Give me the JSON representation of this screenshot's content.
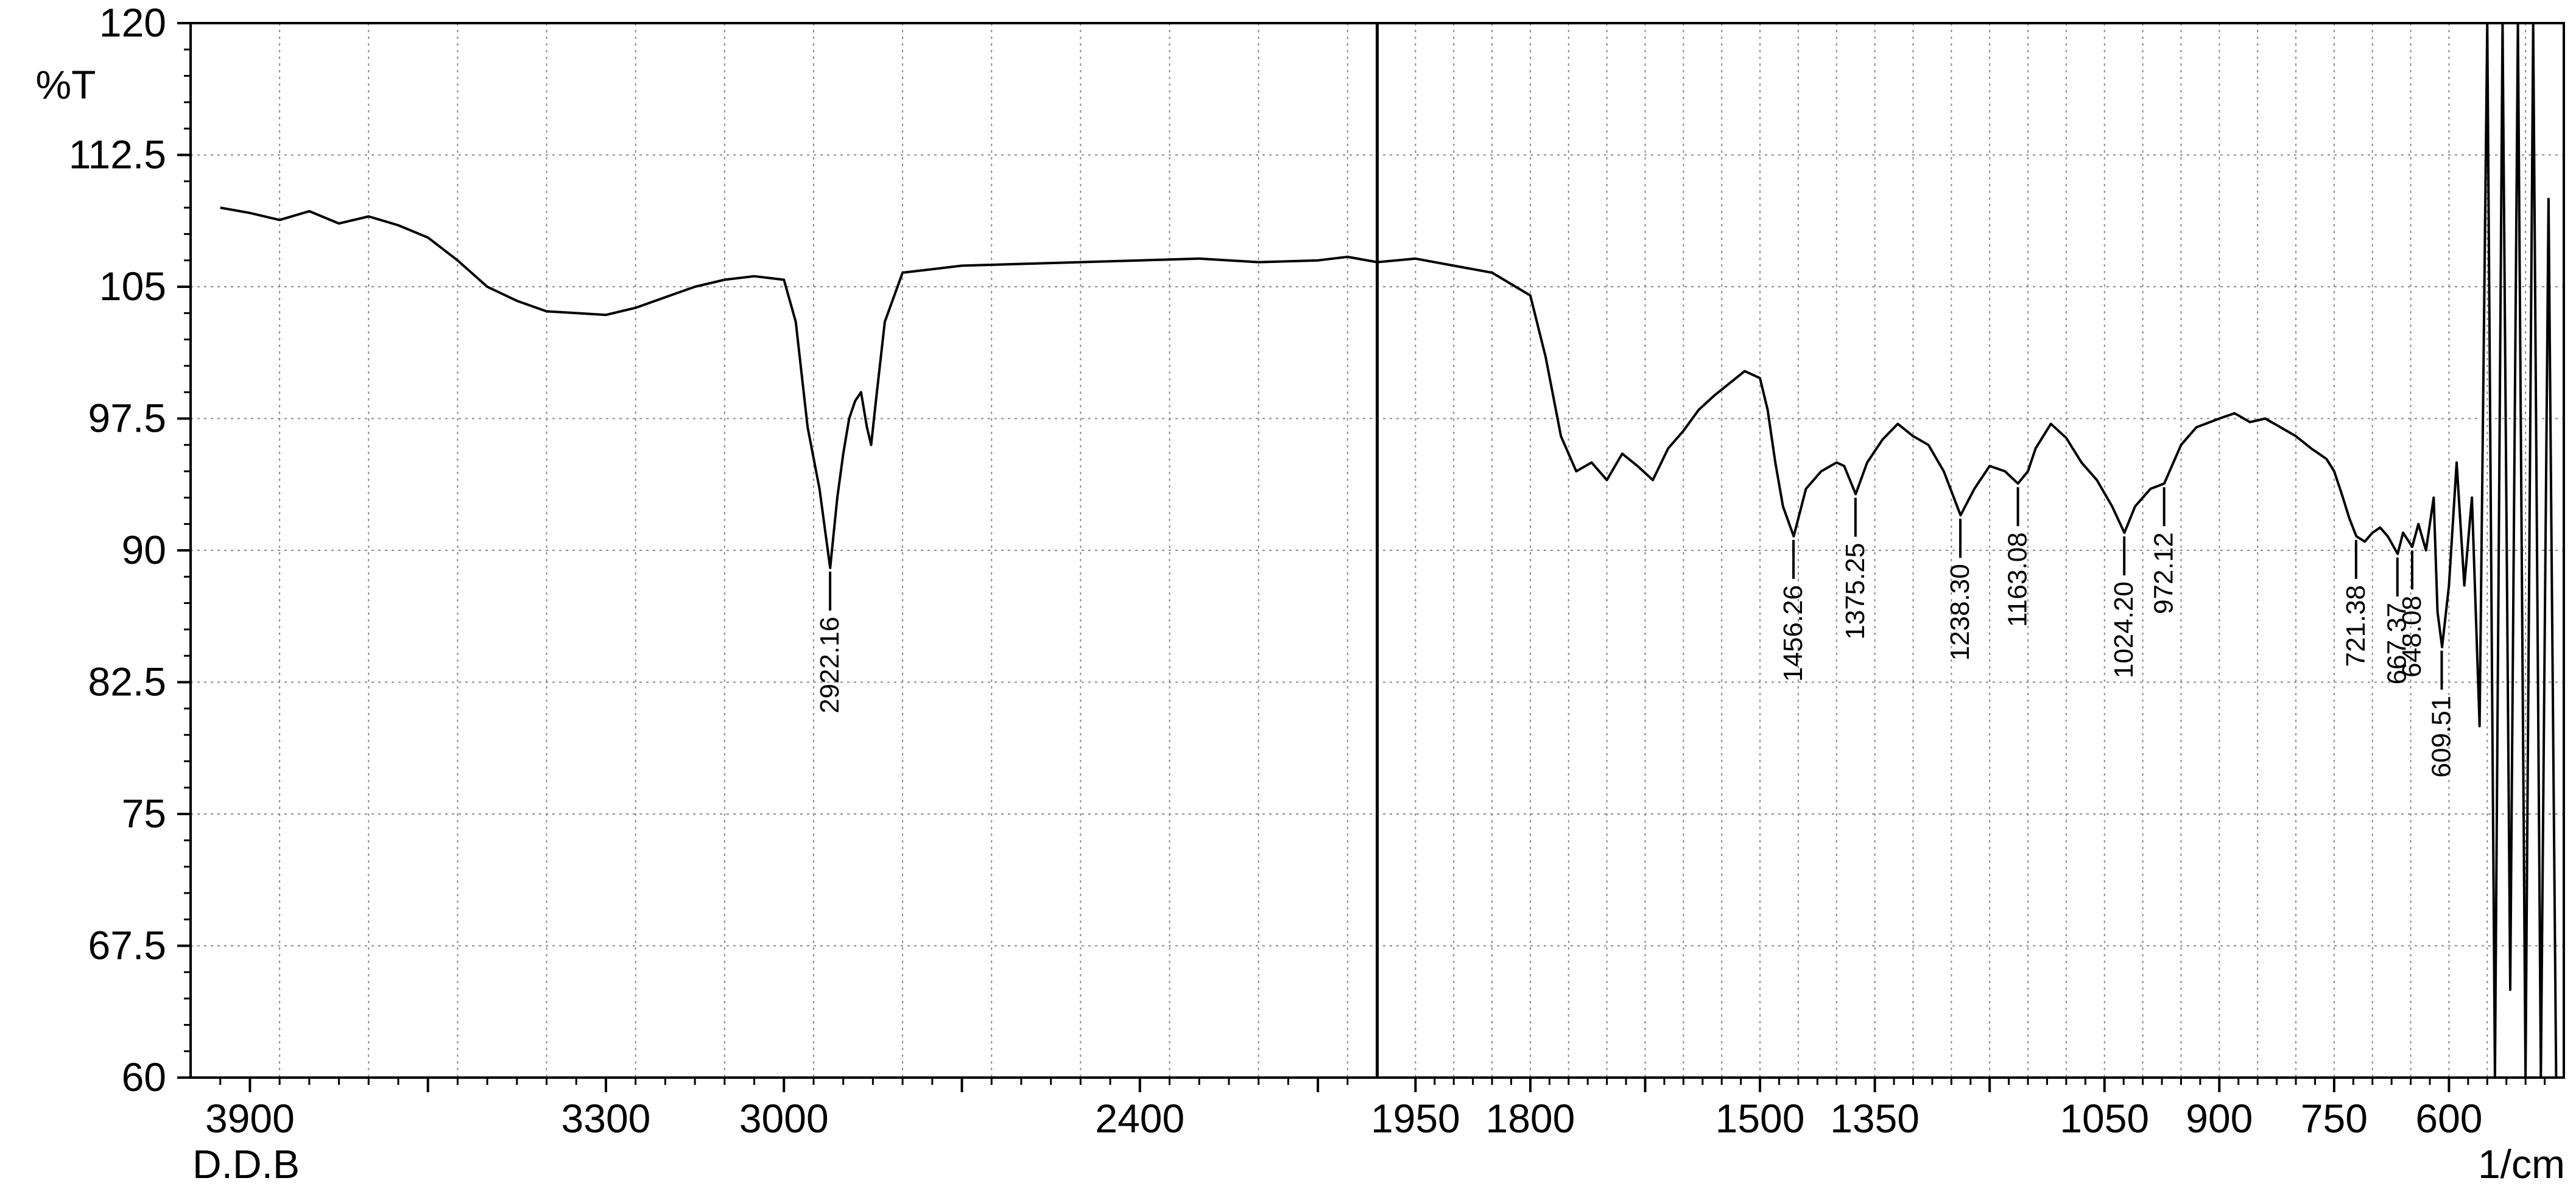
{
  "chart_data": {
    "type": "line",
    "ylabel": "%T",
    "xunit": "1/cm",
    "sample_label": "D.D.B",
    "xlim": [
      4000,
      450
    ],
    "ylim": [
      60,
      120
    ],
    "y_ticks": [
      120,
      112.5,
      105,
      97.5,
      90,
      82.5,
      75,
      67.5,
      60
    ],
    "y_tick_labels": [
      "120",
      "112.5",
      "105",
      "97.5",
      "90",
      "82.5",
      "75",
      "67.5",
      "60"
    ],
    "x_tick_labels": [
      "3900",
      "3300",
      "3000",
      "2400",
      "1950",
      "1800",
      "1500",
      "1350",
      "1050",
      "900",
      "750",
      "600"
    ],
    "grid": true,
    "x_segments": [
      {
        "from": 4000,
        "to": 2000
      },
      {
        "from": 2000,
        "to": 450
      }
    ],
    "series": [
      {
        "name": "",
        "x": [
          3950,
          3900,
          3850,
          3800,
          3750,
          3700,
          3650,
          3600,
          3550,
          3500,
          3450,
          3400,
          3350,
          3300,
          3250,
          3200,
          3150,
          3100,
          3050,
          3000,
          2980,
          2960,
          2940,
          2930,
          2922,
          2910,
          2900,
          2890,
          2880,
          2870,
          2860,
          2853,
          2845,
          2830,
          2800,
          2700,
          2600,
          2500,
          2400,
          2300,
          2200,
          2100,
          2050,
          2000,
          1950,
          1900,
          1850,
          1800,
          1780,
          1760,
          1740,
          1720,
          1700,
          1680,
          1660,
          1640,
          1620,
          1600,
          1580,
          1560,
          1540,
          1520,
          1500,
          1490,
          1480,
          1470,
          1456,
          1440,
          1420,
          1400,
          1390,
          1375,
          1360,
          1340,
          1320,
          1300,
          1280,
          1260,
          1238,
          1220,
          1200,
          1180,
          1163,
          1150,
          1140,
          1120,
          1100,
          1080,
          1060,
          1040,
          1024,
          1010,
          990,
          972,
          950,
          930,
          900,
          880,
          860,
          840,
          820,
          800,
          780,
          760,
          750,
          740,
          730,
          721,
          710,
          700,
          690,
          680,
          667,
          660,
          648,
          640,
          630,
          620,
          615,
          609,
          600,
          590,
          580,
          570,
          560,
          550,
          540,
          530,
          520,
          510,
          500,
          490,
          480,
          470,
          460
        ],
        "y": [
          109.5,
          109.2,
          108.8,
          109.3,
          108.6,
          109.0,
          108.5,
          107.8,
          106.5,
          105.0,
          104.2,
          103.6,
          103.5,
          103.4,
          103.8,
          104.4,
          105.0,
          105.4,
          105.6,
          105.4,
          103.0,
          97.0,
          93.5,
          91.0,
          89.0,
          93.0,
          95.5,
          97.5,
          98.5,
          99.0,
          97.0,
          96.0,
          98.5,
          103.0,
          105.8,
          106.2,
          106.3,
          106.4,
          106.5,
          106.6,
          106.4,
          106.5,
          106.7,
          106.4,
          106.6,
          106.2,
          105.8,
          104.5,
          101.0,
          96.5,
          94.5,
          95.0,
          94.0,
          95.5,
          94.8,
          94.0,
          95.8,
          96.8,
          98.0,
          98.8,
          99.5,
          100.2,
          99.8,
          98.0,
          95.0,
          92.5,
          90.8,
          93.5,
          94.5,
          95.0,
          94.8,
          93.2,
          95.0,
          96.3,
          97.2,
          96.5,
          96.0,
          94.5,
          92.0,
          93.5,
          94.8,
          94.5,
          93.8,
          94.5,
          95.8,
          97.2,
          96.4,
          95.0,
          94.0,
          92.5,
          91.0,
          92.5,
          93.5,
          93.8,
          96.0,
          97.0,
          97.5,
          97.8,
          97.3,
          97.5,
          97.0,
          96.5,
          95.8,
          95.2,
          94.5,
          93.2,
          91.8,
          90.8,
          90.5,
          91.0,
          91.3,
          90.8,
          89.8,
          91.0,
          90.2,
          91.5,
          90.0,
          93.0,
          86.5,
          84.5,
          88.0,
          95.0,
          88.0,
          93.0,
          80.0,
          120.0,
          60.0,
          120.0,
          65.0,
          120.0,
          60.0,
          120.0,
          60.0,
          110.0,
          60.0
        ]
      }
    ],
    "peaks": [
      {
        "label": "2922.16",
        "x": 2922.16,
        "y": 89.0
      },
      {
        "label": "1456.26",
        "x": 1456.26,
        "y": 90.8
      },
      {
        "label": "1375.25",
        "x": 1375.25,
        "y": 93.2
      },
      {
        "label": "1238.30",
        "x": 1238.3,
        "y": 92.0
      },
      {
        "label": "1163.08",
        "x": 1163.08,
        "y": 93.8
      },
      {
        "label": "1024.20",
        "x": 1024.2,
        "y": 91.0
      },
      {
        "label": "972.12",
        "x": 972.12,
        "y": 93.8
      },
      {
        "label": "721.38",
        "x": 721.38,
        "y": 90.8
      },
      {
        "label": "667.37",
        "x": 667.37,
        "y": 89.8
      },
      {
        "label": "648.08",
        "x": 648.08,
        "y": 90.2
      },
      {
        "label": "609.51",
        "x": 609.51,
        "y": 84.5
      }
    ],
    "colors": {
      "line": "#000000",
      "grid": "#8a8a8a",
      "axis": "#000000",
      "background": "#ffffff"
    }
  }
}
